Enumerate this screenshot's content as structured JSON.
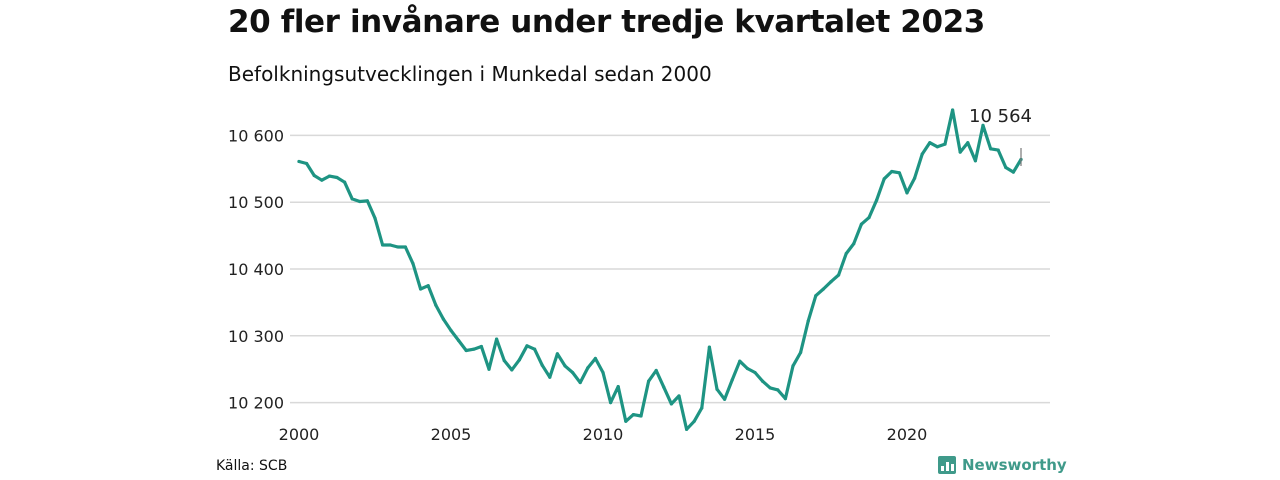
{
  "header": {
    "title": "20 fler invånare under tredje kvartalet 2023",
    "subtitle": "Befolkningsutvecklingen i Munkedal sedan 2000"
  },
  "footer": {
    "source": "Källa: SCB",
    "brand": "Newsworthy"
  },
  "colors": {
    "line": "#1e9483",
    "grid": "#d9d9d9",
    "brand": "#3f9a8a"
  },
  "chart_data": {
    "type": "line",
    "title": "20 fler invånare under tredje kvartalet 2023",
    "subtitle": "Befolkningsutvecklingen i Munkedal sedan 2000",
    "x_ticks": [
      "2000",
      "2005",
      "2010",
      "2015",
      "2020"
    ],
    "y_ticks": [
      "10 200",
      "10 300",
      "10 400",
      "10 500",
      "10 600"
    ],
    "xlim": [
      2000,
      2024
    ],
    "ylim": [
      10150,
      10650
    ],
    "grid": true,
    "annotation": {
      "label": "10 564"
    },
    "series": [
      {
        "values": [
          [
            2000.0,
            10561
          ],
          [
            2000.25,
            10558
          ],
          [
            2000.5,
            10540
          ],
          [
            2000.75,
            10533
          ],
          [
            2001.0,
            10539
          ],
          [
            2001.25,
            10537
          ],
          [
            2001.5,
            10530
          ],
          [
            2001.75,
            10505
          ],
          [
            2002.0,
            10501
          ],
          [
            2002.25,
            10502
          ],
          [
            2002.5,
            10476
          ],
          [
            2002.75,
            10436
          ],
          [
            2003.0,
            10436
          ],
          [
            2003.25,
            10433
          ],
          [
            2003.5,
            10433
          ],
          [
            2003.75,
            10408
          ],
          [
            2004.0,
            10370
          ],
          [
            2004.25,
            10375
          ],
          [
            2004.5,
            10346
          ],
          [
            2004.75,
            10325
          ],
          [
            2005.0,
            10308
          ],
          [
            2005.25,
            10293
          ],
          [
            2005.5,
            10278
          ],
          [
            2005.75,
            10280
          ],
          [
            2006.0,
            10284
          ],
          [
            2006.25,
            10250
          ],
          [
            2006.5,
            10295
          ],
          [
            2006.75,
            10263
          ],
          [
            2007.0,
            10249
          ],
          [
            2007.25,
            10264
          ],
          [
            2007.5,
            10285
          ],
          [
            2007.75,
            10280
          ],
          [
            2008.0,
            10256
          ],
          [
            2008.25,
            10238
          ],
          [
            2008.5,
            10273
          ],
          [
            2008.75,
            10255
          ],
          [
            2009.0,
            10245
          ],
          [
            2009.25,
            10230
          ],
          [
            2009.5,
            10252
          ],
          [
            2009.75,
            10266
          ],
          [
            2010.0,
            10245
          ],
          [
            2010.25,
            10200
          ],
          [
            2010.5,
            10224
          ],
          [
            2010.75,
            10172
          ],
          [
            2011.0,
            10182
          ],
          [
            2011.25,
            10180
          ],
          [
            2011.5,
            10232
          ],
          [
            2011.75,
            10248
          ],
          [
            2012.0,
            10223
          ],
          [
            2012.25,
            10198
          ],
          [
            2012.5,
            10210
          ],
          [
            2012.75,
            10160
          ],
          [
            2013.0,
            10172
          ],
          [
            2013.25,
            10192
          ],
          [
            2013.5,
            10283
          ],
          [
            2013.75,
            10220
          ],
          [
            2014.0,
            10205
          ],
          [
            2014.25,
            10234
          ],
          [
            2014.5,
            10262
          ],
          [
            2014.75,
            10251
          ],
          [
            2015.0,
            10245
          ],
          [
            2015.25,
            10232
          ],
          [
            2015.5,
            10222
          ],
          [
            2015.75,
            10219
          ],
          [
            2016.0,
            10206
          ],
          [
            2016.25,
            10255
          ],
          [
            2016.5,
            10275
          ],
          [
            2016.75,
            10322
          ],
          [
            2017.0,
            10360
          ],
          [
            2017.25,
            10370
          ],
          [
            2017.5,
            10381
          ],
          [
            2017.75,
            10391
          ],
          [
            2018.0,
            10423
          ],
          [
            2018.25,
            10438
          ],
          [
            2018.5,
            10467
          ],
          [
            2018.75,
            10477
          ],
          [
            2019.0,
            10503
          ],
          [
            2019.25,
            10535
          ],
          [
            2019.5,
            10546
          ],
          [
            2019.75,
            10544
          ],
          [
            2020.0,
            10514
          ],
          [
            2020.25,
            10536
          ],
          [
            2020.5,
            10572
          ],
          [
            2020.75,
            10589
          ],
          [
            2021.0,
            10583
          ],
          [
            2021.25,
            10587
          ],
          [
            2021.5,
            10638
          ],
          [
            2021.75,
            10575
          ],
          [
            2022.0,
            10589
          ],
          [
            2022.25,
            10562
          ],
          [
            2022.5,
            10615
          ],
          [
            2022.75,
            10580
          ],
          [
            2023.0,
            10578
          ],
          [
            2023.25,
            10552
          ],
          [
            2023.5,
            10545
          ],
          [
            2023.75,
            10564
          ]
        ]
      }
    ]
  }
}
